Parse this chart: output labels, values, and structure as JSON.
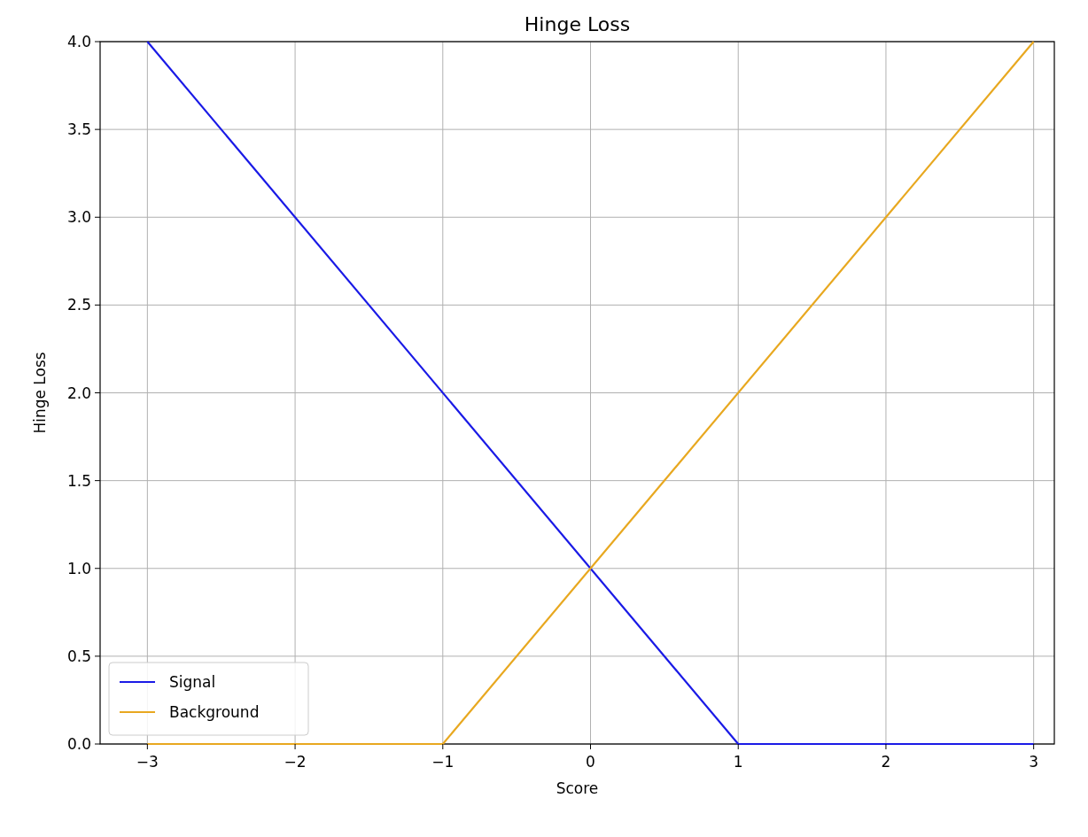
{
  "chart_data": {
    "type": "line",
    "title": "Hinge Loss",
    "xlabel": "Score",
    "ylabel": "Hinge Loss",
    "series": [
      {
        "name": "Signal",
        "color": "#1a1ae6",
        "x": [
          -3,
          1,
          3
        ],
        "values": [
          4,
          0,
          0
        ]
      },
      {
        "name": "Background",
        "color": "#e8a820",
        "x": [
          -3,
          -1,
          3
        ],
        "values": [
          0,
          0,
          4
        ]
      }
    ],
    "xlim": [
      -3.32,
      3.14
    ],
    "xticks": [
      {
        "value": -3,
        "label": "−3"
      },
      {
        "value": -2,
        "label": "−2"
      },
      {
        "value": -1,
        "label": "−1"
      },
      0,
      1,
      2,
      3
    ],
    "ylim": [
      0,
      4
    ],
    "yticks": [
      {
        "value": 0,
        "label": "0.0"
      },
      {
        "value": 0.5,
        "label": "0.5"
      },
      {
        "value": 1,
        "label": "1.0"
      },
      {
        "value": 1.5,
        "label": "1.5"
      },
      {
        "value": 2,
        "label": "2.0"
      },
      {
        "value": 2.5,
        "label": "2.5"
      },
      {
        "value": 3,
        "label": "3.0"
      },
      {
        "value": 3.5,
        "label": "3.5"
      },
      {
        "value": 4,
        "label": "4.0"
      }
    ],
    "grid": true,
    "legend": "bottom left",
    "marker": "none",
    "line_style": "solid"
  }
}
